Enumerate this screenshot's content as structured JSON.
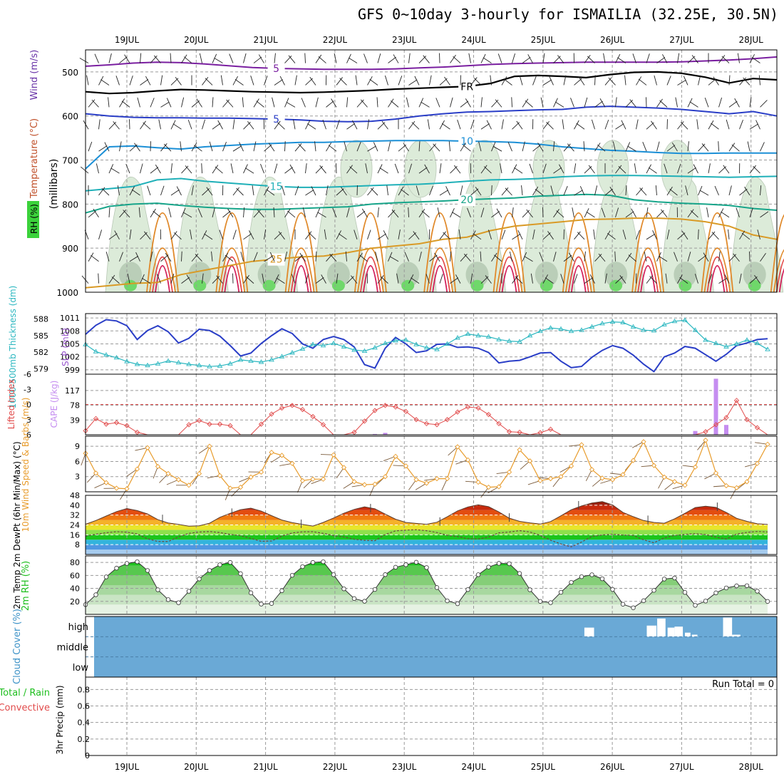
{
  "title": "GFS 0~10day 3-hourly for ISMAILIA (32.25E, 30.5N)",
  "colors": {
    "rh_fill": "#dcebd9",
    "rh_dark": "#9fb79c",
    "rh_green": "#6fd86a",
    "cloud_blue": "#6aa9d6",
    "cloud_cut": "#ffffff",
    "slp": "#2a3ec7",
    "thick": "#2bb7c0",
    "li": "#e14b4b",
    "cape": "#c58df0",
    "wspd": "#e89c2c",
    "barb_brown": "#7a5a3a",
    "rh2m": "#1fbf1f",
    "t_dark": "#5a3a2c"
  },
  "chart_data": [
    {
      "type": "line",
      "name": "upper-air",
      "ylabel_parts": [
        "RH (%)",
        "Temperature (°C)",
        "Wind (m/s)"
      ],
      "ylabel_mb": "(millibars)",
      "x_ticks": [
        "19JUL",
        "20JUL",
        "21JUL",
        "22JUL",
        "23JUL",
        "24JUL",
        "25JUL",
        "26JUL",
        "27JUL",
        "28JUL"
      ],
      "y_ticks": [
        500,
        600,
        700,
        800,
        900,
        1000
      ],
      "ylim": [
        450,
        1000
      ],
      "isotherms": [
        {
          "label": "5",
          "color": "#7a1fa0",
          "levels": [
            487,
            484,
            480,
            478,
            479,
            482,
            486,
            490,
            492,
            493,
            494,
            494,
            494,
            493,
            491,
            489,
            486,
            483,
            481,
            480,
            479,
            478,
            478,
            478,
            478,
            477,
            475,
            473,
            470,
            466
          ]
        },
        {
          "label": "FR",
          "color": "#000000",
          "levels": [
            545,
            549,
            547,
            543,
            540,
            541,
            543,
            545,
            546,
            547,
            546,
            544,
            542,
            539,
            537,
            535,
            533,
            526,
            510,
            508,
            510,
            513,
            506,
            501,
            500,
            503,
            512,
            525,
            515,
            518
          ]
        },
        {
          "label": "5",
          "color": "#2a3ec7",
          "levels": [
            595,
            600,
            603,
            604,
            604,
            605,
            605,
            606,
            607,
            609,
            612,
            613,
            612,
            607,
            600,
            595,
            591,
            590,
            588,
            586,
            585,
            580,
            578,
            580,
            582,
            585,
            590,
            595,
            590,
            600
          ]
        },
        {
          "label": "10",
          "color": "#1b8fd6",
          "levels": [
            720,
            670,
            668,
            672,
            675,
            670,
            667,
            664,
            662,
            660,
            660,
            658,
            657,
            656,
            656,
            656,
            657,
            658,
            660,
            664,
            670,
            674,
            678,
            680,
            683,
            685,
            685,
            684,
            684,
            684
          ]
        },
        {
          "label": "15",
          "color": "#1fb0b8",
          "levels": [
            770,
            765,
            760,
            745,
            742,
            748,
            752,
            756,
            760,
            762,
            762,
            760,
            758,
            756,
            755,
            752,
            748,
            745,
            744,
            742,
            738,
            736,
            735,
            735,
            736,
            737,
            738,
            739,
            738,
            737
          ]
        },
        {
          "label": "20",
          "color": "#17a58a",
          "levels": [
            820,
            805,
            800,
            798,
            803,
            807,
            810,
            812,
            812,
            810,
            808,
            806,
            800,
            797,
            795,
            793,
            790,
            788,
            786,
            782,
            780,
            778,
            780,
            790,
            795,
            798,
            800,
            803,
            810,
            814
          ]
        },
        {
          "label": "25",
          "color": "#d99a26",
          "levels": [
            990,
            985,
            980,
            978,
            960,
            950,
            940,
            930,
            925,
            920,
            918,
            910,
            900,
            895,
            890,
            880,
            875,
            860,
            850,
            845,
            840,
            835,
            834,
            832,
            832,
            834,
            840,
            850,
            870,
            880
          ]
        }
      ]
    },
    {
      "type": "line",
      "name": "slp-thickness",
      "ylabel_left": "1000-500mb Thickness (dm)",
      "ylabel_right": "SLP (mb)",
      "thick_ticks": [
        579,
        582,
        585,
        588
      ],
      "slp_ticks": [
        999,
        1002,
        1005,
        1008,
        1011
      ],
      "thick_ylim": [
        578,
        589
      ],
      "slp_ylim": [
        998,
        1012
      ],
      "slp_series": [
        1007.2,
        1009.3,
        1010.6,
        1010.3,
        1009.2,
        1006.0,
        1008.1,
        1009.2,
        1007.8,
        1005.2,
        1006.3,
        1008.4,
        1008.1,
        1006.8,
        1004.6,
        1002.2,
        1002.9,
        1005.1,
        1006.9,
        1008.5,
        1007.4,
        1005.0,
        1004.0,
        1006.0,
        1006.7,
        1006.0,
        1004.3,
        1000.2,
        999.4,
        1004.0,
        1006.5,
        1005.0,
        1003.0,
        1003.4,
        1004.9,
        1005.0,
        1004.2,
        1004.3,
        1004.0,
        1003.0,
        1000.6,
        1001.0,
        1001.2,
        1002.0,
        1002.9,
        1003.0,
        1001.0,
        999.5,
        999.8,
        1001.9,
        1003.5,
        1004.6,
        1004.0,
        1002.4,
        1000.3,
        998.6,
        1002.0,
        1002.9,
        1004.4,
        1004.0,
        1002.5,
        1001.0,
        1002.6,
        1004.6,
        1005.2,
        1006.0,
        1006.2
      ],
      "thick_series": [
        583.4,
        582.1,
        581.5,
        581.0,
        580.3,
        579.8,
        579.6,
        579.9,
        580.4,
        580.1,
        579.8,
        579.6,
        579.4,
        579.5,
        579.9,
        580.6,
        580.4,
        580.2,
        580.6,
        581.2,
        581.9,
        582.6,
        583.4,
        583.2,
        583.6,
        583.0,
        582.4,
        582.2,
        582.8,
        583.6,
        584.1,
        584.2,
        583.4,
        582.8,
        582.5,
        583.5,
        584.6,
        585.3,
        585.0,
        584.8,
        584.3,
        584.0,
        583.9,
        585.0,
        585.8,
        586.4,
        586.2,
        585.8,
        586.0,
        586.6,
        587.2,
        587.5,
        587.4,
        586.6,
        586.0,
        585.9,
        587.0,
        587.6,
        587.8,
        586.0,
        584.2,
        583.6,
        583.0,
        583.5,
        584.2,
        583.6,
        582.5
      ]
    },
    {
      "type": "bar",
      "name": "li-cape",
      "ylabel_left": "Lifted Index",
      "ylabel_right": "CAPE (J/kg)",
      "li_ticks": [
        "6",
        "3",
        "0",
        "-3",
        "-6"
      ],
      "cape_ticks": [
        39,
        78,
        117
      ],
      "li_ylim": [
        6,
        -6
      ],
      "cape_ylim": [
        0,
        160
      ],
      "li_series": [
        5.2,
        2.8,
        3.9,
        3.6,
        4.2,
        5.5,
        6.0,
        6.0,
        6.0,
        6.0,
        4.0,
        3.2,
        3.9,
        3.9,
        4.2,
        6.0,
        6.0,
        3.9,
        1.9,
        0.7,
        0.2,
        1.0,
        2.4,
        4.0,
        6.0,
        6.0,
        5.5,
        3.3,
        1.2,
        0.2,
        0.5,
        1.4,
        3.0,
        3.8,
        4.0,
        3.0,
        1.5,
        0.5,
        0.7,
        2.0,
        3.8,
        5.4,
        5.5,
        6.0,
        5.6,
        4.9,
        6.0,
        6.0,
        6.0,
        6.0,
        6.0,
        6.0,
        6.0,
        6.0,
        6.0,
        6.0,
        6.0,
        6.0,
        6.0,
        6.0,
        5.4,
        4.0,
        2.6,
        -0.8,
        3.0,
        4.6,
        6.0
      ],
      "cape_series": [
        0,
        0,
        0,
        0,
        0,
        0,
        0,
        0,
        0,
        0,
        0,
        0,
        0,
        0,
        0,
        0,
        0,
        0,
        0,
        0,
        0,
        0,
        0,
        0,
        0,
        0,
        0,
        0,
        2,
        5,
        0,
        0,
        0,
        0,
        0,
        0,
        0,
        0,
        0,
        0,
        0,
        0,
        0,
        0,
        0,
        0,
        0,
        0,
        0,
        0,
        0,
        0,
        0,
        0,
        0,
        0,
        0,
        0,
        0,
        10,
        0,
        148,
        26,
        0,
        0,
        0,
        0
      ]
    },
    {
      "type": "line",
      "name": "wind-10m",
      "ylabel": "10m Wind Speed & Barbs (m/s)",
      "y_ticks": [
        3,
        6,
        9
      ],
      "ylim": [
        0,
        11
      ],
      "series": [
        {
          "values": [
            7.6,
            3.7,
            1.8,
            0.7,
            0.6,
            4.5,
            8.7,
            5.0,
            3.6,
            2.4,
            1.3,
            3.6,
            9.0,
            3.2,
            0.7,
            0.9,
            2.9,
            3.9,
            7.8,
            7.2,
            5.6,
            2.2,
            2.5,
            2.5,
            7.3,
            4.8,
            2.0,
            1.4,
            1.5,
            3.0,
            7.0,
            5.1,
            2.4,
            1.7,
            2.6,
            2.6,
            8.9,
            6.3,
            1.9,
            0.9,
            1.0,
            3.9,
            8.3,
            6.1,
            2.2,
            2.6,
            3.0,
            5.1,
            9.3,
            4.4,
            2.7,
            2.4,
            3.4,
            6.2,
            9.9,
            5.2,
            2.9,
            2.0,
            1.3,
            4.9,
            10.2,
            3.7,
            1.2,
            0.8,
            2.0,
            5.6,
            9.4
          ]
        }
      ],
      "barb_dir_label": "barbs"
    },
    {
      "type": "area",
      "name": "temp-2m",
      "ylabel": "2m Temp 2m DewPt (6hr Min/Max) (°C)",
      "y_ticks": [
        8,
        16,
        24,
        32,
        40,
        48
      ],
      "ylim": [
        0,
        48
      ],
      "temp": [
        24.5,
        27.6,
        31.2,
        34.8,
        37.3,
        35.6,
        32.9,
        28.3,
        25.6,
        24.4,
        23.0,
        23.3,
        25.4,
        30.2,
        33.4,
        36.4,
        37.6,
        35.2,
        31.5,
        28.0,
        25.9,
        24.4,
        23.1,
        26.0,
        29.6,
        33.5,
        36.6,
        38.7,
        37.1,
        32.8,
        28.6,
        26.0,
        25.2,
        24.5,
        26.2,
        30.6,
        35.4,
        38.6,
        40.3,
        38.8,
        34.5,
        29.5,
        26.9,
        25.7,
        24.7,
        26.7,
        31.4,
        36.3,
        39.4,
        41.8,
        42.9,
        40.2,
        34.2,
        30.7,
        27.6,
        26.0,
        25.4,
        29.0,
        33.4,
        38.1,
        39.2,
        38.2,
        34.1,
        29.4,
        26.9,
        24.9,
        24.4
      ],
      "dewpt": [
        15.0,
        16.4,
        17.7,
        18.5,
        18.1,
        16.7,
        12.8,
        10.6,
        10.5,
        14.3,
        17.2,
        18.2,
        18.6,
        17.8,
        16.3,
        15.3,
        13.0,
        10.7,
        11.0,
        14.9,
        17.5,
        18.4,
        18.5,
        17.2,
        15.3,
        14.3,
        12.4,
        11.5,
        11.2,
        16.2,
        19.2,
        19.8,
        20.1,
        19.3,
        17.8,
        15.6,
        14.6,
        12.8,
        12.6,
        14.1,
        17.6,
        18.2,
        19.4,
        18.3,
        15.5,
        11.6,
        8.5,
        6.2,
        10.1,
        14.7,
        15.9,
        16.4,
        15.8,
        15.5,
        11.9,
        9.5,
        13.5,
        15.5,
        16.3,
        16.9,
        16.2,
        14.1,
        12.6,
        16.6,
        18.0,
        18.7,
        18.3
      ],
      "palette": [
        "#a6cbee",
        "#4f97e2",
        "#33b4dd",
        "#1bc51b",
        "#8fe04c",
        "#e8e52b",
        "#f5b12a",
        "#f07a12",
        "#e34d0f",
        "#c72a0d",
        "#9b1f0d",
        "#6b4a3e"
      ]
    },
    {
      "type": "area",
      "name": "rh-2m",
      "ylabel": "2m RH (%)",
      "y_ticks": [
        20,
        40,
        60,
        80
      ],
      "ylim": [
        0,
        90
      ],
      "series": [
        {
          "values": [
            15.0,
            30.2,
            57.7,
            71.2,
            78.4,
            81.0,
            67.6,
            37.9,
            22.7,
            17.9,
            35.6,
            54.5,
            67.7,
            76.4,
            80.0,
            62.7,
            33.2,
            15.8,
            16.7,
            36.4,
            60.2,
            73.5,
            80.0,
            81.0,
            61.1,
            39.3,
            24.3,
            20.2,
            38.4,
            61.2,
            72.6,
            76.5,
            80.3,
            72.1,
            41.3,
            20.8,
            16.4,
            38.2,
            61.1,
            72.8,
            78.5,
            78.0,
            63.0,
            37.9,
            20.0,
            18.0,
            34.0,
            49.3,
            58.0,
            61.0,
            54.8,
            38.4,
            15.6,
            10.1,
            21.0,
            37.0,
            54.4,
            56.0,
            33.8,
            13.9,
            20.5,
            33.1,
            40.7,
            43.9,
            44.1,
            35.7,
            19.9
          ]
        }
      ],
      "fill_palette": [
        "#e6f2e3",
        "#c9e4c4",
        "#a8d8a0",
        "#85ce78",
        "#57c84e",
        "#1fc21f"
      ]
    },
    {
      "type": "heatmap",
      "name": "cloud-cover",
      "ylabel": "Cloud Cover (%)",
      "y_categories": [
        "high",
        "middle",
        "low"
      ],
      "high_cells": [
        {
          "day": 6.7,
          "width": 0.14,
          "height": 0.45
        },
        {
          "day": 7.6,
          "width": 0.14,
          "height": 0.55
        },
        {
          "day": 7.75,
          "width": 0.12,
          "height": 0.9
        },
        {
          "day": 7.9,
          "width": 0.1,
          "height": 0.45
        },
        {
          "day": 8.0,
          "width": 0.12,
          "height": 0.5
        },
        {
          "day": 8.15,
          "width": 0.08,
          "height": 0.2
        },
        {
          "day": 8.25,
          "width": 0.08,
          "height": 0.1
        },
        {
          "day": 8.7,
          "width": 0.13,
          "height": 0.95
        },
        {
          "day": 8.83,
          "width": 0.12,
          "height": 0.1
        }
      ]
    },
    {
      "type": "bar",
      "name": "precip-3hr",
      "ylabel_left": "Total / Rain",
      "ylabel_conv": "Convective",
      "ylabel_right": "3hr Precip (mm)",
      "y_ticks": [
        "0",
        "0.2",
        "0.4",
        "0.6",
        "0.8"
      ],
      "ylim": [
        0,
        0.95
      ],
      "run_total": "Run Total = 0",
      "values": []
    }
  ]
}
